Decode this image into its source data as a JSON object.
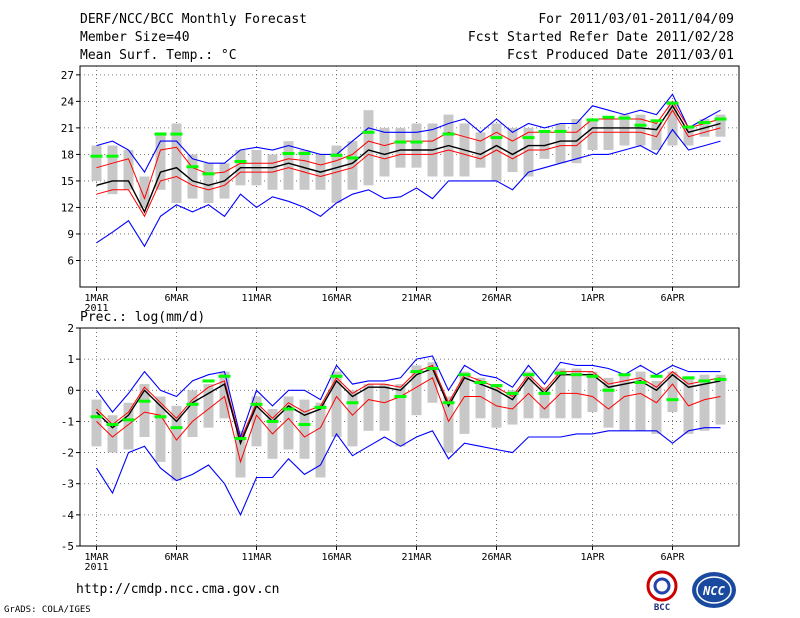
{
  "header": {
    "title": "DERF/NCC/BCC Monthly Forecast",
    "member_size": "Member Size=40",
    "forecast_range": "For 2011/03/01-2011/04/09",
    "fcst_started": "Fcst Started Refer Date 2011/02/28",
    "fcst_produced": "Fcst Produced Date 2011/03/01"
  },
  "footer": {
    "url": "http://cmdp.ncc.cma.gov.cn",
    "credit": "GrADS: COLA/IGES",
    "logo_bcc": "BCC",
    "logo_ncc": "NCC"
  },
  "colors": {
    "max_min": "#0000ff",
    "spread": "#ff0000",
    "mean": "#000000",
    "box": "#c8c8c8",
    "obs": "#00ff00"
  },
  "chart_data": [
    {
      "type": "line",
      "title": "Mean Surf. Temp.: °C",
      "ylim": [
        3,
        28
      ],
      "yticks": [
        6,
        9,
        12,
        15,
        18,
        21,
        24,
        27
      ],
      "x_tick_days": [
        1,
        6,
        11,
        16,
        21,
        26,
        32,
        37
      ],
      "xtick_labels": [
        "1MAR",
        "6MAR",
        "11MAR",
        "16MAR",
        "21MAR",
        "26MAR",
        "1APR",
        "6APR"
      ],
      "year_label": "2011",
      "grid": true,
      "days": [
        1,
        2,
        3,
        4,
        5,
        6,
        7,
        8,
        9,
        10,
        11,
        12,
        13,
        14,
        15,
        16,
        17,
        18,
        19,
        20,
        21,
        22,
        23,
        24,
        25,
        26,
        27,
        28,
        29,
        30,
        31,
        32,
        33,
        34,
        35,
        36,
        37,
        38,
        39,
        40
      ],
      "series": [
        {
          "name": "max",
          "values": [
            19,
            19.5,
            18.5,
            16,
            19.5,
            19.5,
            17.5,
            17,
            17,
            18.5,
            18.8,
            18.5,
            19,
            18.5,
            18,
            18,
            19.5,
            21,
            20.5,
            20.5,
            20.5,
            20.8,
            21.5,
            22,
            20.5,
            22,
            20.5,
            21.5,
            21,
            21.5,
            21.5,
            23.5,
            23,
            22.5,
            23,
            22.5,
            24.8,
            21,
            22,
            23
          ]
        },
        {
          "name": "upper",
          "values": [
            16.5,
            17,
            17.5,
            13,
            18.5,
            18.8,
            16.5,
            15.8,
            16,
            17,
            17,
            17,
            17.5,
            17.3,
            16.8,
            17.3,
            18,
            19.5,
            19,
            19.5,
            19.5,
            19.5,
            20.5,
            20,
            19.5,
            20.5,
            19.5,
            20.5,
            20.5,
            20.5,
            20.5,
            22,
            22,
            22,
            22,
            21.5,
            24,
            21,
            21.5,
            22
          ]
        },
        {
          "name": "mean",
          "values": [
            14.5,
            15,
            15,
            11.5,
            16,
            16.5,
            15,
            14.5,
            15,
            16.5,
            16.5,
            16.5,
            17,
            16.5,
            16,
            16.5,
            17,
            18.5,
            18,
            18.5,
            18.5,
            18.5,
            19,
            18.5,
            18,
            19,
            18,
            19,
            19,
            19.5,
            19.5,
            21,
            21,
            21,
            21,
            20.8,
            23.5,
            20.5,
            21,
            21.5
          ]
        },
        {
          "name": "lower",
          "values": [
            13.5,
            14,
            14,
            11,
            15,
            15.5,
            14.5,
            14,
            14.5,
            16,
            16,
            16,
            16.5,
            16,
            15.5,
            16,
            16.5,
            18,
            17.5,
            18,
            18,
            18,
            18.5,
            18,
            17.5,
            18.5,
            17.5,
            18.5,
            18.5,
            19,
            19,
            20.5,
            20.5,
            20.5,
            20.5,
            20,
            23,
            20,
            20.5,
            21
          ]
        },
        {
          "name": "min",
          "values": [
            8,
            9.2,
            10.5,
            7.6,
            11,
            12.3,
            11.5,
            12.3,
            11,
            13.5,
            12,
            13.2,
            12.7,
            12,
            11,
            12.5,
            13.5,
            14,
            13,
            13.2,
            14.2,
            13,
            15,
            15,
            15,
            15,
            14,
            16,
            16.5,
            17,
            17.5,
            18,
            18,
            18.5,
            19,
            18,
            20.8,
            18.5,
            19,
            19.5
          ]
        },
        {
          "name": "box_low",
          "values": [
            15,
            13.5,
            14,
            12,
            14,
            12.5,
            13,
            12.5,
            13,
            14.5,
            14.5,
            14,
            14,
            14,
            14,
            12.5,
            14,
            14.5,
            15.5,
            16.5,
            16.5,
            15.5,
            15.5,
            15.5,
            16.5,
            15,
            16,
            15.5,
            17.5,
            17,
            17,
            18.5,
            18.5,
            19,
            19,
            18.5,
            19,
            19,
            20,
            20
          ]
        },
        {
          "name": "box_high",
          "values": [
            19,
            19,
            18.5,
            15.5,
            20.5,
            21.5,
            18,
            17,
            17,
            18.5,
            18.5,
            18,
            19.5,
            18.5,
            18,
            19,
            19.5,
            23,
            21,
            21,
            21.5,
            21.5,
            22.5,
            21.5,
            20.5,
            21.5,
            21,
            21,
            20.5,
            21.5,
            22,
            22,
            22,
            22.5,
            22.5,
            21.5,
            24,
            21,
            22,
            22.5
          ]
        },
        {
          "name": "obs",
          "values": [
            17.8,
            17.8,
            null,
            null,
            20.3,
            20.3,
            16.6,
            15.8,
            null,
            17.2,
            null,
            null,
            18.1,
            18.1,
            null,
            17.9,
            17.6,
            20.5,
            null,
            19.4,
            19.4,
            null,
            20.3,
            null,
            null,
            19.9,
            null,
            19.9,
            20.6,
            20.6,
            null,
            21.9,
            22.2,
            22.1,
            21.3,
            21.8,
            23.8,
            21.1,
            21.6,
            22
          ]
        }
      ]
    },
    {
      "type": "line",
      "title": "Prec.: log(mm/d)",
      "ylim": [
        -5,
        2
      ],
      "yticks": [
        -5,
        -4,
        -3,
        -2,
        -1,
        0,
        1,
        2
      ],
      "x_tick_days": [
        1,
        6,
        11,
        16,
        21,
        26,
        32,
        37
      ],
      "xtick_labels": [
        "1MAR",
        "6MAR",
        "11MAR",
        "16MAR",
        "21MAR",
        "26MAR",
        "1APR",
        "6APR"
      ],
      "year_label": "2011",
      "grid": true,
      "days": [
        1,
        2,
        3,
        4,
        5,
        6,
        7,
        8,
        9,
        10,
        11,
        12,
        13,
        14,
        15,
        16,
        17,
        18,
        19,
        20,
        21,
        22,
        23,
        24,
        25,
        26,
        27,
        28,
        29,
        30,
        31,
        32,
        33,
        34,
        35,
        36,
        37,
        38,
        39,
        40
      ],
      "series": [
        {
          "name": "max",
          "values": [
            0,
            -0.7,
            -0.1,
            0.6,
            0,
            -0.2,
            0.3,
            0.5,
            0.6,
            -1.5,
            0,
            -0.5,
            0,
            0,
            -0.3,
            0.8,
            0.2,
            0.3,
            0.3,
            0.4,
            1,
            1.1,
            0,
            0.8,
            0.5,
            0.4,
            0.1,
            0.8,
            0.2,
            0.9,
            0.8,
            0.8,
            0.7,
            0.5,
            0.8,
            0.5,
            0.8,
            0.6,
            0.6,
            0.6
          ]
        },
        {
          "name": "upper",
          "values": [
            -0.6,
            -1.1,
            -0.7,
            0.1,
            -0.4,
            -0.9,
            -0.3,
            0.1,
            0.3,
            -1.6,
            -0.4,
            -0.9,
            -0.4,
            -0.7,
            -0.5,
            0.4,
            -0.1,
            0.2,
            0.2,
            0.1,
            0.6,
            0.8,
            -0.4,
            0.5,
            0.3,
            0.1,
            -0.2,
            0.5,
            0,
            0.6,
            0.6,
            0.6,
            0.2,
            0.3,
            0.4,
            0.1,
            0.6,
            0.2,
            0.3,
            0.4
          ]
        },
        {
          "name": "mean",
          "values": [
            -0.7,
            -1.2,
            -0.8,
            0,
            -0.5,
            -1,
            -0.4,
            -0.1,
            0.2,
            -1.7,
            -0.5,
            -1,
            -0.5,
            -0.8,
            -0.6,
            0.3,
            -0.2,
            0.1,
            0.1,
            0,
            0.5,
            0.7,
            -0.5,
            0.4,
            0.2,
            0,
            -0.3,
            0.4,
            -0.1,
            0.5,
            0.5,
            0.5,
            0.1,
            0.2,
            0.3,
            0,
            0.5,
            0.1,
            0.2,
            0.3
          ]
        },
        {
          "name": "lower",
          "values": [
            -1,
            -1.5,
            -1.1,
            -0.7,
            -0.8,
            -1.6,
            -1,
            -0.6,
            -0.2,
            -2.3,
            -0.8,
            -1.4,
            -0.9,
            -1.5,
            -1.2,
            -0.2,
            -0.8,
            -0.3,
            -0.4,
            -0.2,
            0.1,
            0.4,
            -1,
            -0.2,
            -0.2,
            -0.5,
            -0.6,
            -0.1,
            -0.6,
            -0.1,
            -0.1,
            -0.2,
            -0.6,
            -0.2,
            -0.1,
            -0.4,
            0.2,
            -0.5,
            -0.3,
            -0.2
          ]
        },
        {
          "name": "min",
          "values": [
            -2.5,
            -3.3,
            -2,
            -1.8,
            -2.5,
            -2.9,
            -2.7,
            -2.4,
            -3,
            -4,
            -2.8,
            -2.8,
            -2.2,
            -2.7,
            -2.4,
            -1.4,
            -2.1,
            -1.8,
            -1.5,
            -1.8,
            -1.5,
            -1.3,
            -2.2,
            -1.7,
            -1.8,
            -1.9,
            -2,
            -1.5,
            -1.5,
            -1.5,
            -1.4,
            -1.4,
            -1.3,
            -1.3,
            -1.3,
            -1.3,
            -1.7,
            -1.3,
            -1.2,
            -1.2
          ]
        },
        {
          "name": "box_low",
          "values": [
            -1.8,
            -2,
            -1.9,
            -1.5,
            -2.3,
            -2.9,
            -1.5,
            -1.2,
            -0.9,
            -2.8,
            -1.8,
            -2.2,
            -1.9,
            -2.2,
            -2.8,
            -1.5,
            -1.8,
            -1.3,
            -1.3,
            -1.8,
            -0.8,
            -0.4,
            -2,
            -1.4,
            -0.9,
            -1.2,
            -1.1,
            -0.9,
            -0.9,
            -0.9,
            -0.9,
            -0.7,
            -1.2,
            -1.3,
            -1.3,
            -1.4,
            -0.7,
            -1.4,
            -1.3,
            -1.1
          ]
        },
        {
          "name": "box_high",
          "values": [
            -0.3,
            -0.8,
            -0.4,
            0.2,
            -0.2,
            -0.5,
            0,
            0.2,
            0.6,
            -1.3,
            -0.2,
            -0.6,
            -0.2,
            -0.3,
            -0.4,
            0.6,
            0,
            0.2,
            0.2,
            0.2,
            0.8,
            0.9,
            -0.2,
            0.6,
            0.4,
            0.2,
            0,
            0.6,
            0.1,
            0.7,
            0.7,
            0.6,
            0.4,
            0.5,
            0.6,
            0.3,
            0.6,
            0.4,
            0.5,
            0.5
          ]
        },
        {
          "name": "obs",
          "values": [
            -0.85,
            -1.1,
            -0.95,
            -0.35,
            -0.85,
            -1.2,
            -0.45,
            0.3,
            0.45,
            -1.55,
            -0.45,
            -1,
            -0.6,
            -1.1,
            -0.55,
            0.45,
            -0.4,
            null,
            null,
            -0.2,
            0.6,
            0.7,
            -0.4,
            0.5,
            0.25,
            0.15,
            -0.1,
            0.5,
            -0.1,
            0.55,
            0.5,
            0.45,
            0,
            0.5,
            0.25,
            0.45,
            -0.3,
            0.4,
            0.3,
            0.35
          ]
        }
      ]
    }
  ]
}
